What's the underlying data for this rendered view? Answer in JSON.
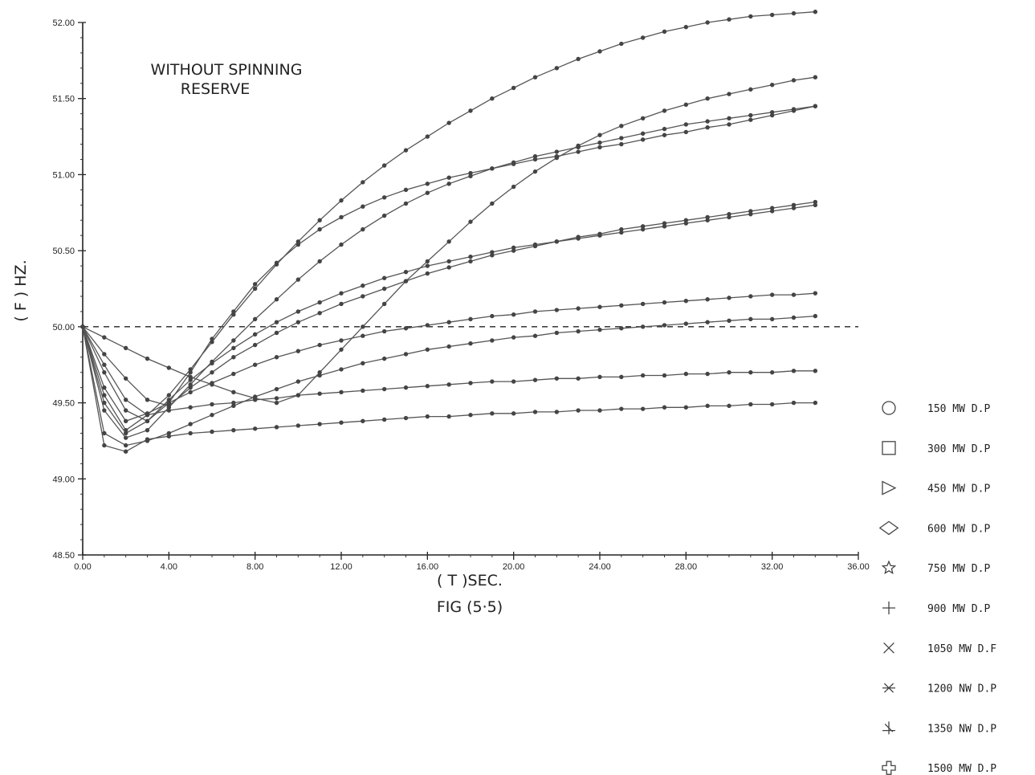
{
  "chart_data": {
    "type": "line",
    "title": "",
    "annotation": [
      "WITHOUT SPINNING",
      "RESERVE"
    ],
    "xlabel": "( T )SEC.",
    "caption": "FIG (5·5)",
    "ylabel": "( F ) HZ.",
    "xlim": [
      0,
      36
    ],
    "ylim": [
      48.5,
      52.0
    ],
    "x_ticks": [
      "0.00",
      "4.00",
      "8.00",
      "12.00",
      "16.00",
      "20.00",
      "24.00",
      "28.00",
      "32.00",
      "36.00"
    ],
    "y_ticks": [
      "48.50",
      "49.00",
      "49.50",
      "50.00",
      "50.50",
      "51.00",
      "51.50",
      "52.00"
    ],
    "reference_line": 50.0,
    "grid": false,
    "legend_position": "right",
    "x": [
      0,
      1,
      2,
      3,
      4,
      5,
      6,
      7,
      8,
      9,
      10,
      11,
      12,
      13,
      14,
      15,
      16,
      17,
      18,
      19,
      20,
      21,
      22,
      23,
      24,
      25,
      26,
      27,
      28,
      29,
      30,
      31,
      32,
      33,
      34
    ],
    "series": [
      {
        "name": "150  MW  D.P",
        "marker": "circle",
        "values": [
          50.0,
          49.93,
          49.86,
          49.79,
          49.73,
          49.67,
          49.62,
          49.57,
          49.53,
          49.5,
          49.55,
          49.7,
          49.85,
          50.0,
          50.15,
          50.3,
          50.43,
          50.56,
          50.69,
          50.81,
          50.92,
          51.02,
          51.11,
          51.19,
          51.26,
          51.32,
          51.37,
          51.42,
          51.46,
          51.5,
          51.53,
          51.56,
          51.59,
          51.62,
          51.64
        ]
      },
      {
        "name": "300  MW  D.P",
        "marker": "square",
        "values": [
          50.0,
          49.82,
          49.66,
          49.52,
          49.48,
          49.6,
          49.7,
          49.8,
          49.88,
          49.96,
          50.03,
          50.09,
          50.15,
          50.2,
          50.25,
          50.3,
          50.35,
          50.39,
          50.43,
          50.47,
          50.5,
          50.53,
          50.56,
          50.59,
          50.61,
          50.64,
          50.66,
          50.68,
          50.7,
          50.72,
          50.74,
          50.76,
          50.78,
          50.8,
          50.82
        ]
      },
      {
        "name": "450  MW  D.P",
        "marker": "triangle",
        "values": [
          50.0,
          49.75,
          49.52,
          49.42,
          49.45,
          49.47,
          49.49,
          49.5,
          49.52,
          49.53,
          49.55,
          49.56,
          49.57,
          49.58,
          49.59,
          49.6,
          49.61,
          49.62,
          49.63,
          49.64,
          49.64,
          49.65,
          49.66,
          49.66,
          49.67,
          49.67,
          49.68,
          49.68,
          49.69,
          49.69,
          49.7,
          49.7,
          49.7,
          49.71,
          49.71
        ]
      },
      {
        "name": "600  MW  D.P",
        "marker": "diamond",
        "values": [
          50.0,
          49.7,
          49.45,
          49.38,
          49.5,
          49.7,
          49.92,
          50.1,
          50.28,
          50.42,
          50.54,
          50.64,
          50.72,
          50.79,
          50.85,
          50.9,
          50.94,
          50.98,
          51.01,
          51.04,
          51.07,
          51.1,
          51.12,
          51.15,
          51.18,
          51.2,
          51.23,
          51.26,
          51.28,
          51.31,
          51.33,
          51.36,
          51.39,
          51.42,
          51.45
        ]
      },
      {
        "name": "750  MW  D.P",
        "marker": "star",
        "values": [
          50.0,
          49.6,
          49.38,
          49.43,
          49.5,
          49.57,
          49.63,
          49.69,
          49.75,
          49.8,
          49.84,
          49.88,
          49.91,
          49.94,
          49.97,
          49.99,
          50.01,
          50.03,
          50.05,
          50.07,
          50.08,
          50.1,
          50.11,
          50.12,
          50.13,
          50.14,
          50.15,
          50.16,
          50.17,
          50.18,
          50.19,
          50.2,
          50.21,
          50.21,
          50.22
        ]
      },
      {
        "name": "900  MW  D.P",
        "marker": "plus",
        "values": [
          50.0,
          49.55,
          49.32,
          49.42,
          49.55,
          49.72,
          49.9,
          50.08,
          50.25,
          50.41,
          50.56,
          50.7,
          50.83,
          50.95,
          51.06,
          51.16,
          51.25,
          51.34,
          51.42,
          51.5,
          51.57,
          51.64,
          51.7,
          51.76,
          51.81,
          51.86,
          51.9,
          51.94,
          51.97,
          52.0,
          52.02,
          52.04,
          52.05,
          52.06,
          52.07
        ]
      },
      {
        "name": "1050  MW  D.F",
        "marker": "x",
        "values": [
          50.0,
          49.5,
          49.3,
          49.38,
          49.52,
          49.65,
          49.76,
          49.86,
          49.95,
          50.03,
          50.1,
          50.16,
          50.22,
          50.27,
          50.32,
          50.36,
          50.4,
          50.43,
          50.46,
          50.49,
          50.52,
          50.54,
          50.56,
          50.58,
          50.6,
          50.62,
          50.64,
          50.66,
          50.68,
          50.7,
          50.72,
          50.74,
          50.76,
          50.78,
          50.8
        ]
      },
      {
        "name": "1200  NW  D.P",
        "marker": "asterisk",
        "values": [
          50.0,
          49.45,
          49.27,
          49.32,
          49.47,
          49.62,
          49.77,
          49.91,
          50.05,
          50.18,
          50.31,
          50.43,
          50.54,
          50.64,
          50.73,
          50.81,
          50.88,
          50.94,
          50.99,
          51.04,
          51.08,
          51.12,
          51.15,
          51.18,
          51.21,
          51.24,
          51.27,
          51.3,
          51.33,
          51.35,
          51.37,
          51.39,
          51.41,
          51.43,
          51.45
        ]
      },
      {
        "name": "1350  NW  D.P",
        "marker": "star4",
        "values": [
          50.0,
          49.3,
          49.22,
          49.25,
          49.3,
          49.36,
          49.42,
          49.48,
          49.54,
          49.59,
          49.64,
          49.68,
          49.72,
          49.76,
          49.79,
          49.82,
          49.85,
          49.87,
          49.89,
          49.91,
          49.93,
          49.94,
          49.96,
          49.97,
          49.98,
          49.99,
          50.0,
          50.01,
          50.02,
          50.03,
          50.04,
          50.05,
          50.05,
          50.06,
          50.07
        ]
      },
      {
        "name": "1500  MW  D.P",
        "marker": "cross",
        "values": [
          50.0,
          49.22,
          49.18,
          49.26,
          49.28,
          49.3,
          49.31,
          49.32,
          49.33,
          49.34,
          49.35,
          49.36,
          49.37,
          49.38,
          49.39,
          49.4,
          49.41,
          49.41,
          49.42,
          49.43,
          49.43,
          49.44,
          49.44,
          49.45,
          49.45,
          49.46,
          49.46,
          49.47,
          49.47,
          49.48,
          49.48,
          49.49,
          49.49,
          49.5,
          49.5
        ]
      }
    ]
  }
}
